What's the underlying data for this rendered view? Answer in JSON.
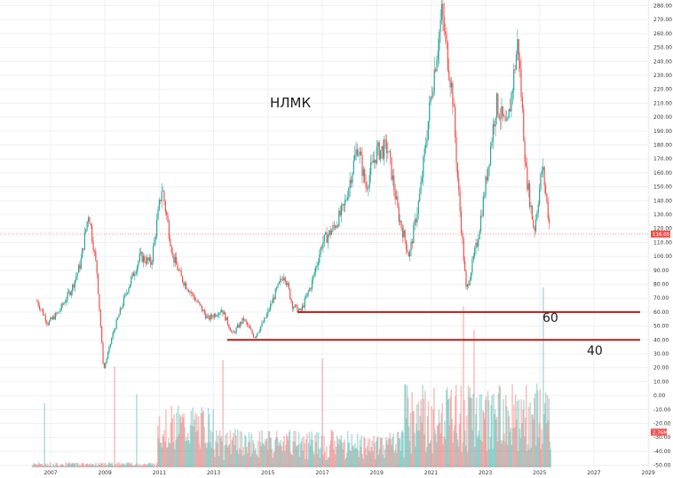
{
  "chart_data": {
    "type": "candlestick",
    "title": "НЛМК",
    "y_axis": {
      "range": [
        -50,
        280
      ],
      "ticks": [
        "280.00",
        "270.00",
        "260.00",
        "250.00",
        "240.00",
        "230.00",
        "220.00",
        "210.00",
        "200.00",
        "190.00",
        "180.00",
        "170.00",
        "160.00",
        "150.00",
        "140.00",
        "130.00",
        "120.00",
        "110.00",
        "100.00",
        "90.00",
        "80.00",
        "70.00",
        "60.00",
        "50.00",
        "40.00",
        "30.00",
        "20.00",
        "10.00",
        "0.00",
        "-10.00",
        "-20.00",
        "-30.00",
        "-40.00",
        "-50.00"
      ]
    },
    "x_axis": {
      "ticks": [
        "2007",
        "2009",
        "2011",
        "2013",
        "2015",
        "2017",
        "2019",
        "2021",
        "2023",
        "2025",
        "2027",
        "2029"
      ]
    },
    "current_price": {
      "label": "116.05",
      "value": 116.05
    },
    "volume_badge": {
      "label": "2.76M"
    },
    "colors": {
      "up": "#26a69a",
      "down": "#ef5350",
      "level_line": "#b71c1c",
      "badge": "#ef5350"
    },
    "levels": [
      {
        "label": "60",
        "value": 60,
        "from_year": 2016.1,
        "to_year": 2029.0
      },
      {
        "label": "40",
        "value": 40,
        "from_year": 2013.5,
        "to_year": 2029.0
      }
    ],
    "price_path": [
      [
        2006.5,
        68
      ],
      [
        2006.9,
        52
      ],
      [
        2007.3,
        60
      ],
      [
        2007.8,
        78
      ],
      [
        2008.1,
        95
      ],
      [
        2008.4,
        132
      ],
      [
        2008.7,
        90
      ],
      [
        2008.95,
        18
      ],
      [
        2009.3,
        45
      ],
      [
        2009.8,
        75
      ],
      [
        2010.3,
        100
      ],
      [
        2010.7,
        95
      ],
      [
        2011.1,
        150
      ],
      [
        2011.5,
        100
      ],
      [
        2011.8,
        85
      ],
      [
        2012.3,
        70
      ],
      [
        2012.8,
        55
      ],
      [
        2013.3,
        62
      ],
      [
        2013.7,
        44
      ],
      [
        2014.1,
        55
      ],
      [
        2014.5,
        42
      ],
      [
        2014.9,
        55
      ],
      [
        2015.3,
        75
      ],
      [
        2015.6,
        88
      ],
      [
        2015.9,
        65
      ],
      [
        2016.2,
        60
      ],
      [
        2016.6,
        80
      ],
      [
        2017.0,
        110
      ],
      [
        2017.4,
        120
      ],
      [
        2017.8,
        135
      ],
      [
        2018.3,
        180
      ],
      [
        2018.6,
        150
      ],
      [
        2019.0,
        175
      ],
      [
        2019.4,
        178
      ],
      [
        2019.8,
        130
      ],
      [
        2020.2,
        100
      ],
      [
        2020.6,
        145
      ],
      [
        2021.0,
        215
      ],
      [
        2021.4,
        275
      ],
      [
        2021.8,
        215
      ],
      [
        2022.0,
        150
      ],
      [
        2022.3,
        75
      ],
      [
        2022.7,
        110
      ],
      [
        2023.0,
        150
      ],
      [
        2023.4,
        210
      ],
      [
        2023.8,
        190
      ],
      [
        2024.2,
        255
      ],
      [
        2024.5,
        160
      ],
      [
        2024.8,
        118
      ],
      [
        2025.1,
        165
      ],
      [
        2025.4,
        116
      ]
    ]
  }
}
